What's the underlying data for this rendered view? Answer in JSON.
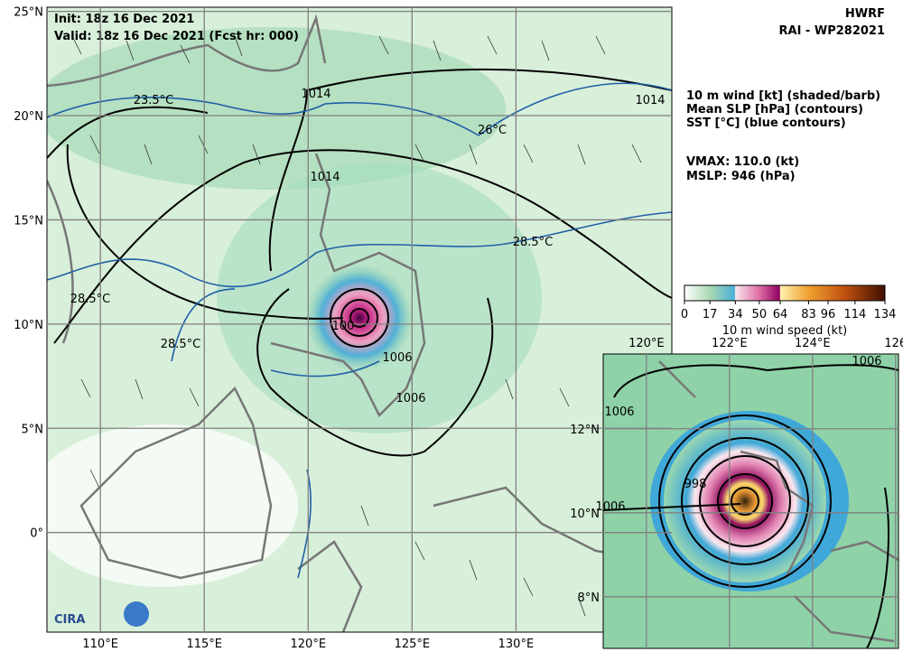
{
  "header": {
    "init": "Init:  18z 16 Dec 2021",
    "valid": "Valid: 18z 16 Dec 2021 (Fcst hr: 000)",
    "model": "HWRF",
    "storm": "RAI - WP282021"
  },
  "legend": {
    "lines": [
      "10 m wind [kt] (shaded/barb)",
      "Mean SLP [hPa] (contours)",
      "SST [°C] (blue contours)"
    ],
    "vmax": "VMAX: 110.0 (kt)",
    "mslp": "MSLP:  946 (hPa)"
  },
  "colorbar": {
    "label": "10 m wind speed (kt)",
    "lim": [
      0,
      134
    ],
    "ticks": [
      0,
      17,
      34,
      50,
      64,
      83,
      96,
      114,
      134
    ]
  },
  "main_map": {
    "lonlim": [
      107.43,
      137.5
    ],
    "latlim": [
      -4.78,
      25.2
    ],
    "lonticks": [
      {
        "value": 110,
        "label": "110°E"
      },
      {
        "value": 115,
        "label": "115°E"
      },
      {
        "value": 120,
        "label": "120°E"
      },
      {
        "value": 125,
        "label": "125°E"
      },
      {
        "value": 130,
        "label": "130°E"
      }
    ],
    "latticks": [
      {
        "value": 25,
        "label": "25°N"
      },
      {
        "value": 20,
        "label": "20°N"
      },
      {
        "value": 15,
        "label": "15°N"
      },
      {
        "value": 10,
        "label": "10°N"
      },
      {
        "value": 5,
        "label": "5°N"
      },
      {
        "value": 0,
        "label": "0°"
      }
    ],
    "contour_labels": [
      "1014",
      "1014",
      "1014",
      "23.5°C",
      "26°C",
      "28.5°C",
      "28.5°C",
      "28.5°C",
      "1006",
      "1006",
      "100"
    ]
  },
  "inset_map": {
    "lonlim": [
      118.96,
      126.07
    ],
    "latlim": [
      6.77,
      13.78
    ],
    "lonticks": [
      {
        "value": 120,
        "label": "120°E"
      },
      {
        "value": 122,
        "label": "122°E"
      },
      {
        "value": 124,
        "label": "124°E"
      },
      {
        "value": 126,
        "label": "126"
      }
    ],
    "latticks": [
      {
        "value": 12,
        "label": "12°N"
      },
      {
        "value": 10,
        "label": "10°N"
      },
      {
        "value": 8,
        "label": "8°N"
      }
    ],
    "contour_labels": [
      "1006",
      "1006",
      "1006",
      "998"
    ]
  },
  "logo": "CIRA"
}
